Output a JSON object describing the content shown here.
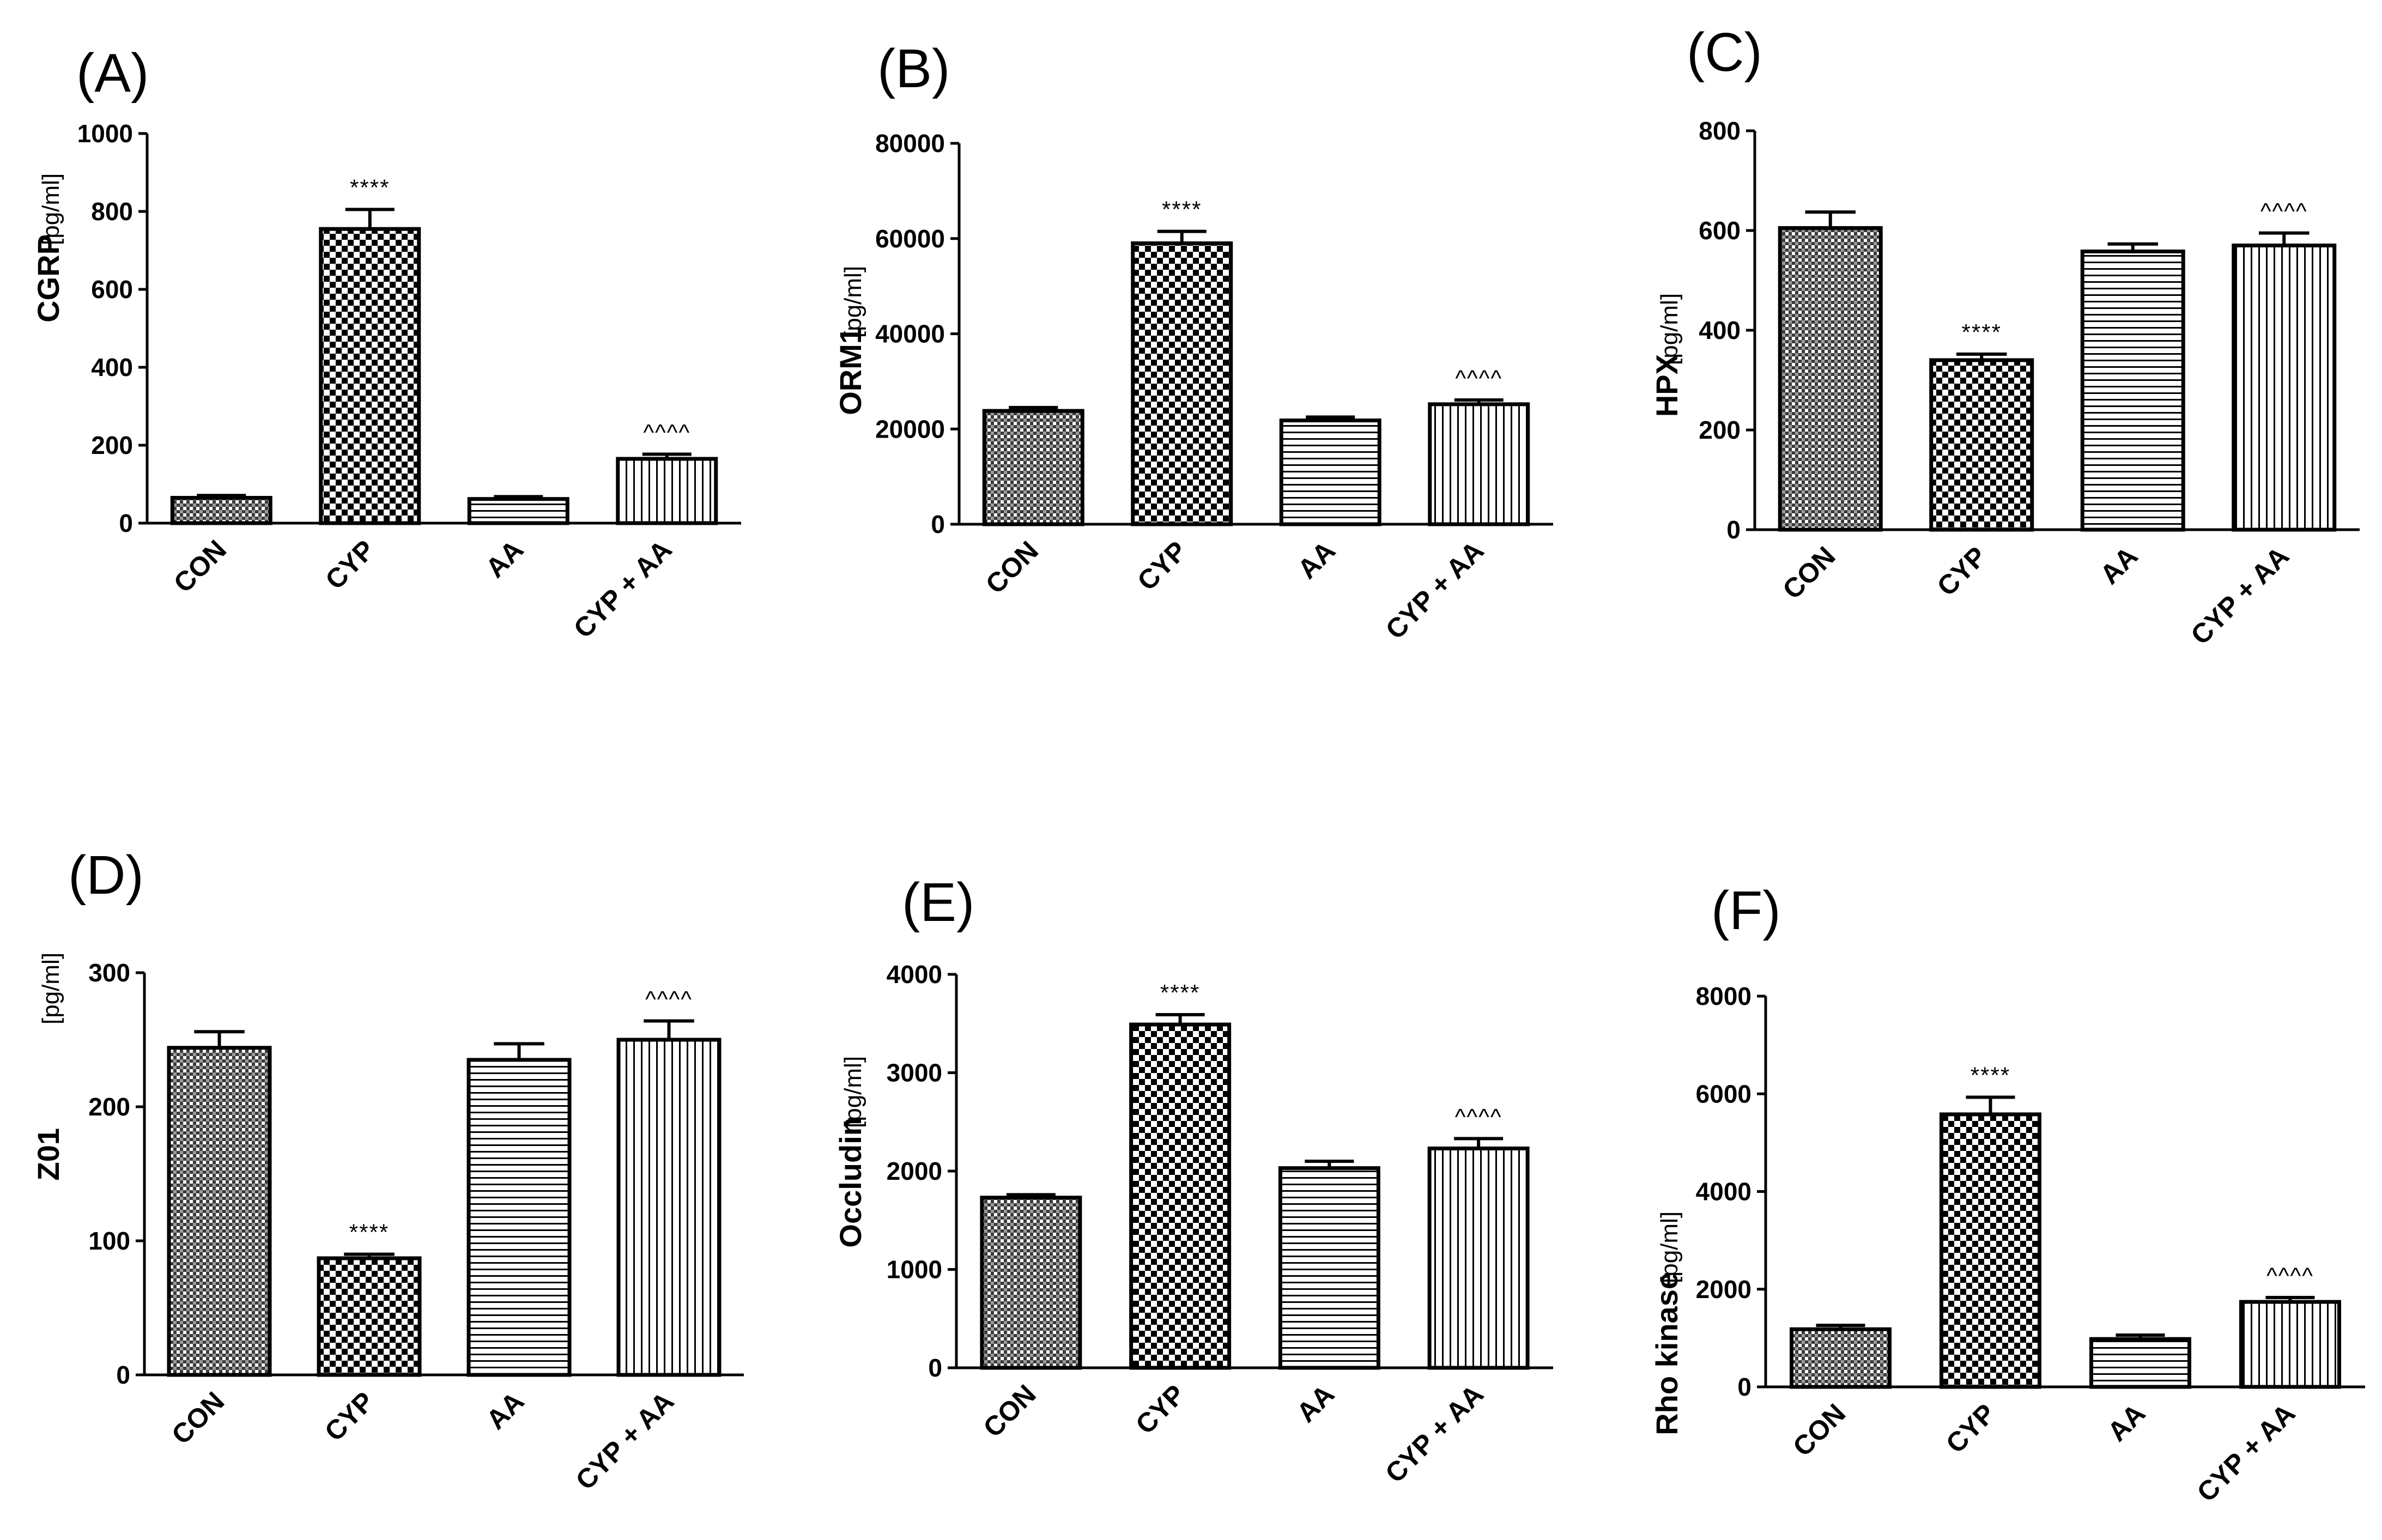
{
  "figure": {
    "categories": [
      "CON",
      "CYP",
      "AA",
      "CYP + AA"
    ],
    "patterns": [
      "grid",
      "checker",
      "hlines",
      "vlines"
    ]
  },
  "chart_data": [
    {
      "type": "bar",
      "panel": "(A)",
      "ylabel": "CGRP",
      "yunit": "[pg/ml]",
      "ylim": [
        0,
        1000
      ],
      "yticks": [
        0,
        200,
        400,
        600,
        800,
        1000
      ],
      "categories": [
        "CON",
        "CYP",
        "AA",
        "CYP + AA"
      ],
      "values": [
        65,
        755,
        62,
        165
      ],
      "errors": [
        6,
        50,
        6,
        12
      ],
      "annotations": [
        "",
        "****",
        "",
        "^^^^"
      ]
    },
    {
      "type": "bar",
      "panel": "(B)",
      "ylabel": "ORM1",
      "yunit": "[pg/ml]",
      "ylim": [
        0,
        80000
      ],
      "yticks": [
        0,
        20000,
        40000,
        60000,
        80000
      ],
      "categories": [
        "CON",
        "CYP",
        "AA",
        "CYP + AA"
      ],
      "values": [
        23800,
        59000,
        21800,
        25200
      ],
      "errors": [
        700,
        2500,
        700,
        900
      ],
      "annotations": [
        "",
        "****",
        "",
        "^^^^"
      ]
    },
    {
      "type": "bar",
      "panel": "(C)",
      "ylabel": "HPX",
      "yunit": "[pg/ml]",
      "ylim": [
        0,
        800
      ],
      "yticks": [
        0,
        200,
        400,
        600,
        800
      ],
      "categories": [
        "CON",
        "CYP",
        "AA",
        "CYP + AA"
      ],
      "values": [
        605,
        340,
        558,
        570
      ],
      "errors": [
        32,
        12,
        15,
        25
      ],
      "annotations": [
        "",
        "****",
        "",
        "^^^^"
      ]
    },
    {
      "type": "bar",
      "panel": "(D)",
      "ylabel": "Z01",
      "yunit": "[pg/ml]",
      "ylim": [
        0,
        300
      ],
      "yticks": [
        0,
        100,
        200,
        300
      ],
      "categories": [
        "CON",
        "CYP",
        "AA",
        "CYP + AA"
      ],
      "values": [
        244,
        87,
        235,
        250
      ],
      "errors": [
        12,
        3,
        12,
        14
      ],
      "annotations": [
        "",
        "****",
        "",
        "^^^^"
      ]
    },
    {
      "type": "bar",
      "panel": "(E)",
      "ylabel": "Occludin",
      "yunit": "[pg/ml]",
      "ylim": [
        0,
        4000
      ],
      "yticks": [
        0,
        1000,
        2000,
        3000,
        4000
      ],
      "categories": [
        "CON",
        "CYP",
        "AA",
        "CYP + AA"
      ],
      "values": [
        1730,
        3490,
        2030,
        2230
      ],
      "errors": [
        30,
        100,
        70,
        100
      ],
      "annotations": [
        "",
        "****",
        "",
        "^^^^"
      ]
    },
    {
      "type": "bar",
      "panel": "(F)",
      "ylabel": "Rho kinase",
      "yunit": "[pg/ml]",
      "ylim": [
        0,
        8000
      ],
      "yticks": [
        0,
        2000,
        4000,
        6000,
        8000
      ],
      "categories": [
        "CON",
        "CYP",
        "AA",
        "CYP + AA"
      ],
      "values": [
        1180,
        5580,
        980,
        1740
      ],
      "errors": [
        80,
        350,
        80,
        90
      ],
      "annotations": [
        "",
        "****",
        "",
        "^^^^"
      ]
    }
  ]
}
